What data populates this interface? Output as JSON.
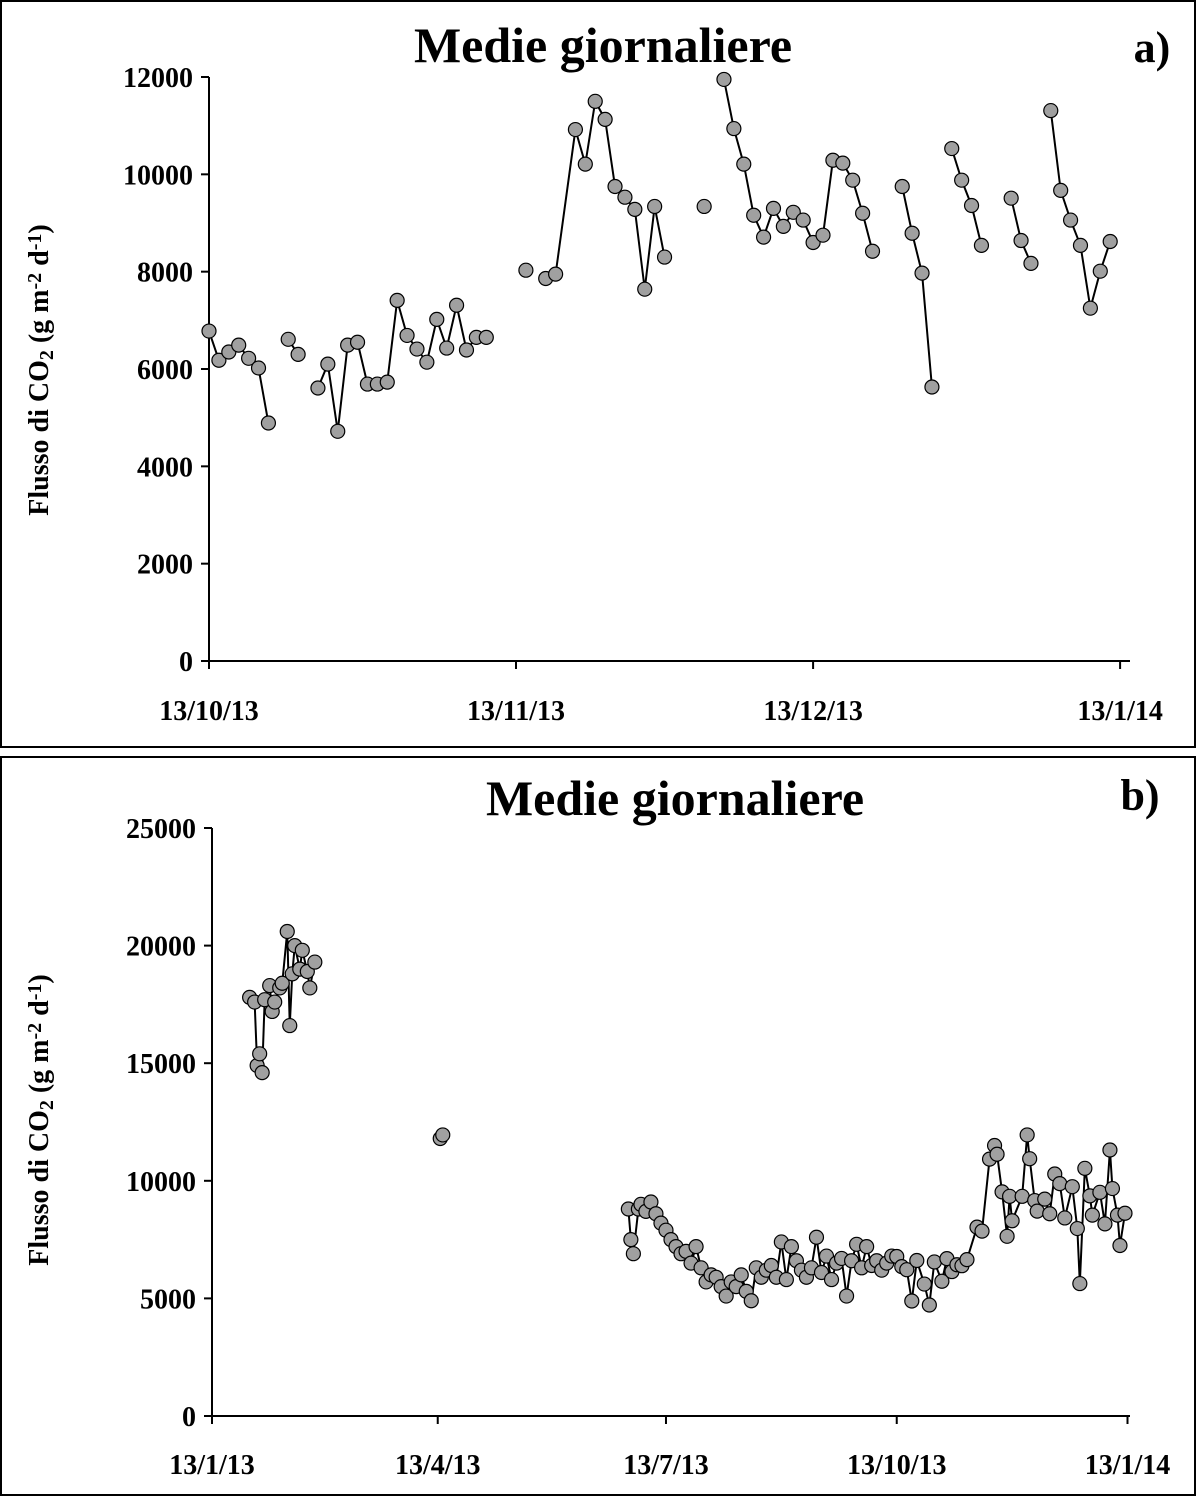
{
  "chart_data": [
    {
      "type": "line",
      "title": "Medie giornaliere",
      "panel_label": "a)",
      "y_label": [
        "Flusso di CO",
        "2",
        " (g m",
        "-2",
        " d",
        "-1",
        ")"
      ],
      "xlim": [
        "13/10/13",
        "14/1/14"
      ],
      "xticks": [
        "13/10/13",
        "13/11/13",
        "13/12/13",
        "13/1/14"
      ],
      "ylim": [
        0,
        12000
      ],
      "yticks": [
        0,
        2000,
        4000,
        6000,
        8000,
        10000,
        12000
      ],
      "grid": false,
      "series": [
        {
          "color": "#a0a0a0",
          "line_color": "#000000",
          "x": [
            "13/10/13",
            "14/10/13",
            "15/10/13",
            "16/10/13",
            "17/10/13",
            "18/10/13",
            "19/10/13",
            "20/10/13",
            "21/10/13",
            "22/10/13",
            "23/10/13",
            "24/10/13",
            "25/10/13",
            "26/10/13",
            "27/10/13",
            "28/10/13",
            "29/10/13",
            "30/10/13",
            "31/10/13",
            "1/11/13",
            "2/11/13",
            "3/11/13",
            "4/11/13",
            "5/11/13",
            "6/11/13",
            "7/11/13",
            "8/11/13",
            "9/11/13",
            "10/11/13",
            "11/11/13",
            "14/11/13",
            "15/11/13",
            "16/11/13",
            "17/11/13",
            "19/11/13",
            "20/11/13",
            "21/11/13",
            "22/11/13",
            "23/11/13",
            "24/11/13",
            "25/11/13",
            "26/11/13",
            "27/11/13",
            "28/11/13",
            "29/11/13",
            "2/12/13",
            "3/12/13",
            "4/12/13",
            "5/12/13",
            "6/12/13",
            "7/12/13",
            "8/12/13",
            "9/12/13",
            "10/12/13",
            "11/12/13",
            "12/12/13",
            "13/12/13",
            "14/12/13",
            "15/12/13",
            "16/12/13",
            "17/12/13",
            "18/12/13",
            "19/12/13",
            "20/12/13",
            "22/12/13",
            "23/12/13",
            "24/12/13",
            "25/12/13",
            "26/12/13",
            "27/12/13",
            "28/12/13",
            "29/12/13",
            "30/12/13",
            "31/12/13",
            "2/1/14",
            "3/1/14",
            "4/1/14",
            "5/1/14",
            "6/1/14",
            "7/1/14",
            "8/1/14",
            "9/1/14",
            "10/1/14",
            "11/1/14",
            "12/1/14"
          ],
          "values": [
            6780,
            6180,
            6350,
            6490,
            6220,
            6020,
            4890,
            null,
            6610,
            6300,
            null,
            5610,
            6100,
            4720,
            6490,
            6550,
            5690,
            5690,
            5730,
            7410,
            6690,
            6410,
            6140,
            7020,
            6430,
            7310,
            6390,
            6650,
            6650,
            null,
            8030,
            null,
            7860,
            7950,
            10920,
            10210,
            11500,
            11130,
            9750,
            9530,
            9280,
            7640,
            9340,
            8300,
            null,
            9340,
            null,
            11950,
            10940,
            10210,
            9160,
            8710,
            9300,
            8930,
            9220,
            9060,
            8600,
            8750,
            10290,
            10230,
            9880,
            9200,
            8420,
            null,
            9750,
            8790,
            7970,
            5630,
            null,
            10530,
            9880,
            9360,
            8540,
            null,
            9510,
            8640,
            8170,
            null,
            11310,
            9670,
            9060,
            8540,
            7250,
            8010,
            8620
          ]
        }
      ]
    },
    {
      "type": "line",
      "title": "Medie giornaliere",
      "panel_label": "b)",
      "y_label": [
        "Flusso di CO",
        "2",
        " (g m",
        "-2",
        " d",
        "-1",
        ")"
      ],
      "xlim": [
        "13/1/13",
        "14/1/14"
      ],
      "xticks": [
        "13/1/13",
        "13/4/13",
        "13/7/13",
        "13/10/13",
        "13/1/14"
      ],
      "ylim": [
        0,
        25000
      ],
      "yticks": [
        0,
        5000,
        10000,
        15000,
        20000,
        25000
      ],
      "grid": false,
      "series": [
        {
          "color": "#a0a0a0",
          "line_color": "#000000",
          "x": [
            "28/1/13",
            "30/1/13",
            "31/1/13",
            "1/2/13",
            "2/2/13",
            "3/2/13",
            "5/2/13",
            "6/2/13",
            "7/2/13",
            "9/2/13",
            "10/2/13",
            "12/2/13",
            "13/2/13",
            "14/2/13",
            "15/2/13",
            "17/2/13",
            "18/2/13",
            "20/2/13",
            "21/2/13",
            "23/2/13",
            "1/3/13",
            "14/4/13",
            "15/4/13",
            "1/5/13",
            "28/6/13",
            "29/6/13",
            "30/6/13",
            "2/7/13",
            "3/7/13",
            "5/7/13",
            "7/7/13",
            "9/7/13",
            "11/7/13",
            "13/7/13",
            "15/7/13",
            "17/7/13",
            "19/7/13",
            "21/7/13",
            "23/7/13",
            "25/7/13",
            "27/7/13",
            "29/7/13",
            "31/7/13",
            "2/8/13",
            "4/8/13",
            "6/8/13",
            "8/8/13",
            "10/8/13",
            "12/8/13",
            "14/8/13",
            "16/8/13",
            "18/8/13",
            "20/8/13",
            "22/8/13",
            "24/8/13",
            "26/8/13",
            "28/8/13",
            "30/8/13",
            "1/9/13",
            "3/9/13",
            "5/9/13",
            "7/9/13",
            "9/9/13",
            "11/9/13",
            "13/9/13",
            "15/9/13",
            "17/9/13",
            "19/9/13",
            "21/9/13",
            "23/9/13",
            "25/9/13",
            "27/9/13",
            "29/9/13",
            "1/10/13",
            "3/10/13",
            "5/10/13",
            "7/10/13",
            "9/10/13",
            "11/10/13",
            "13/10/13",
            "15/10/13",
            "17/10/13",
            "19/10/13",
            "21/10/13",
            "24/10/13",
            "26/10/13",
            "28/10/13",
            "31/10/13",
            "2/11/13",
            "4/11/13",
            "6/11/13",
            "8/11/13",
            "10/11/13",
            "14/11/13",
            "16/11/13",
            "19/11/13",
            "21/11/13",
            "22/11/13",
            "24/11/13",
            "26/11/13",
            "27/11/13",
            "28/11/13",
            "2/12/13",
            "4/12/13",
            "5/12/13",
            "7/12/13",
            "8/12/13",
            "11/12/13",
            "13/12/13",
            "15/12/13",
            "17/12/13",
            "19/12/13",
            "22/12/13",
            "24/12/13",
            "25/12/13",
            "27/12/13",
            "29/12/13",
            "30/12/13",
            "2/1/14",
            "4/1/14",
            "6/1/14",
            "7/1/14",
            "9/1/14",
            "10/1/14",
            "12/1/14"
          ],
          "values": [
            17800,
            17600,
            14900,
            15400,
            14600,
            17700,
            18300,
            17200,
            17600,
            18200,
            18400,
            20600,
            16600,
            18800,
            20000,
            19000,
            19800,
            18900,
            18200,
            19300,
            null,
            11800,
            11950,
            null,
            8800,
            7500,
            6900,
            8800,
            9000,
            8700,
            9100,
            8600,
            8200,
            7900,
            7500,
            7200,
            6900,
            7000,
            6500,
            7200,
            6300,
            5700,
            6000,
            5900,
            5500,
            5100,
            5700,
            5500,
            6000,
            5300,
            4900,
            6300,
            5900,
            6200,
            6400,
            5900,
            7400,
            5800,
            7200,
            6600,
            6200,
            5900,
            6300,
            7600,
            6100,
            6800,
            5800,
            6500,
            6700,
            5100,
            6600,
            7300,
            6300,
            7200,
            6400,
            6600,
            6200,
            6500,
            6800,
            6780,
            6350,
            6220,
            4890,
            6610,
            5610,
            4720,
            6550,
            5730,
            6690,
            6140,
            6430,
            6390,
            6650,
            8030,
            7860,
            10920,
            11500,
            11130,
            9530,
            7640,
            9340,
            8300,
            9340,
            11950,
            10940,
            9160,
            8710,
            9220,
            8600,
            10290,
            9880,
            8420,
            9750,
            7970,
            5630,
            10530,
            9360,
            8540,
            9510,
            8170,
            11310,
            9670,
            8540,
            7250,
            8620
          ]
        }
      ]
    }
  ]
}
